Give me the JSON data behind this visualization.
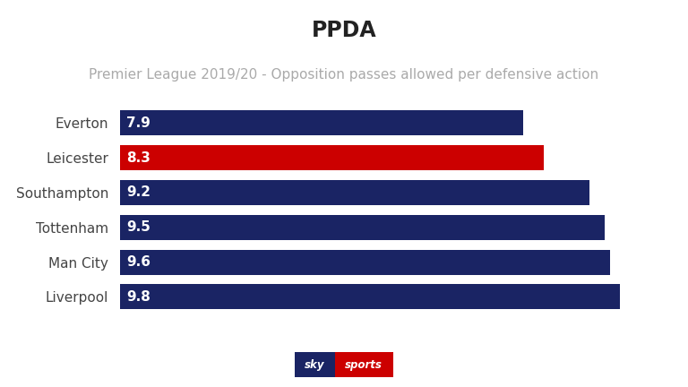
{
  "title": "PPDA",
  "subtitle": "Premier League 2019/20 - Opposition passes allowed per defensive action",
  "categories": [
    "Everton",
    "Leicester",
    "Southampton",
    "Tottenham",
    "Man City",
    "Liverpool"
  ],
  "values": [
    7.9,
    8.3,
    9.2,
    9.5,
    9.6,
    9.8
  ],
  "bar_colors": [
    "#1a2464",
    "#cc0000",
    "#1a2464",
    "#1a2464",
    "#1a2464",
    "#1a2464"
  ],
  "value_labels": [
    "7.9",
    "8.3",
    "9.2",
    "9.5",
    "9.6",
    "9.8"
  ],
  "background_color": "#ffffff",
  "title_fontsize": 17,
  "subtitle_fontsize": 11,
  "label_fontsize": 11,
  "value_fontsize": 11,
  "bar_label_color": "#ffffff",
  "category_label_color": "#444444",
  "xlim": [
    0,
    10.8
  ],
  "bar_height": 0.72,
  "sky_blue": "#1a2464",
  "sky_red": "#cc0000"
}
